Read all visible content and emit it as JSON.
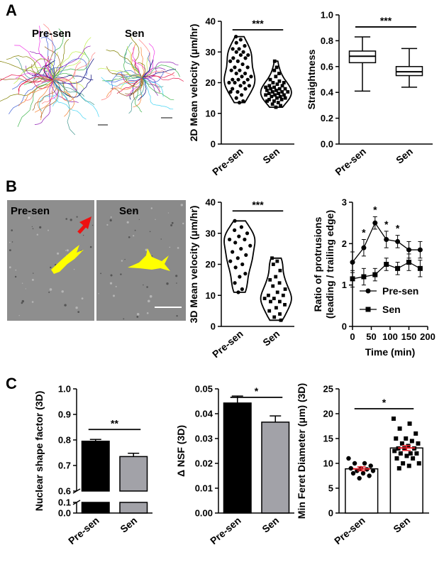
{
  "panel_labels": [
    "A",
    "B",
    "C"
  ],
  "images": {
    "a_left": "Pre-sen",
    "a_right": "Sen",
    "b_left": "Pre-sen",
    "b_right": "Sen"
  },
  "chart_data": [
    {
      "type": "violin",
      "ylabel": "2D Mean velocity (μm/hr)",
      "categories": [
        "Pre-sen",
        "Sen"
      ],
      "markers": [
        "circle",
        "square"
      ],
      "values": [
        [
          35,
          34,
          33,
          32,
          31,
          31,
          30,
          30,
          29,
          29,
          28,
          28,
          27,
          27,
          26,
          25,
          25,
          24,
          24,
          23,
          23,
          22,
          22,
          21,
          21,
          21,
          20,
          20,
          20,
          19,
          19,
          18,
          18,
          17,
          17,
          16,
          15,
          14,
          13.5
        ],
        [
          27,
          25,
          24,
          23,
          22,
          21,
          20.5,
          20,
          20,
          19.5,
          19,
          19,
          18.5,
          18.5,
          18,
          18,
          18,
          17.5,
          17.5,
          17,
          17,
          17,
          16.5,
          16.5,
          16,
          16,
          16,
          15.5,
          15.5,
          15,
          15,
          14.5,
          14.5,
          14,
          14,
          13.5,
          13,
          12.5,
          12
        ]
      ],
      "ylim": [
        0,
        40
      ],
      "yticks": [
        0,
        10,
        20,
        30,
        40
      ],
      "significance": "***"
    },
    {
      "type": "box",
      "ylabel": "Straightness",
      "categories": [
        "Pre-sen",
        "Sen"
      ],
      "boxes": [
        {
          "min": 0.41,
          "q1": 0.63,
          "median": 0.68,
          "q3": 0.72,
          "max": 0.83
        },
        {
          "min": 0.44,
          "q1": 0.53,
          "median": 0.56,
          "q3": 0.6,
          "max": 0.74
        }
      ],
      "ylim": [
        0,
        1
      ],
      "yticks": [
        {
          "value": 0,
          "label": "0.0"
        },
        0.2,
        0.4,
        0.6,
        0.8,
        {
          "value": 1,
          "label": "1.0"
        }
      ],
      "significance": "***"
    },
    {
      "type": "violin",
      "ylabel": "3D Mean velocity (μm/hr)",
      "categories": [
        "Pre-sen",
        "Sen"
      ],
      "markers": [
        "circle",
        "square"
      ],
      "values": [
        [
          34,
          32,
          31,
          30,
          29,
          28,
          28,
          27,
          26,
          25,
          24,
          23,
          22,
          21,
          20,
          19,
          17,
          16,
          14,
          12,
          11
        ],
        [
          22,
          21,
          20,
          18,
          16,
          15,
          14,
          13,
          12,
          11,
          10,
          10,
          9,
          9,
          8,
          8,
          7,
          6,
          5,
          4,
          3,
          2
        ]
      ],
      "ylim": [
        0,
        40
      ],
      "yticks": [
        0,
        10,
        20,
        30,
        40
      ],
      "significance": "***"
    },
    {
      "type": "line",
      "ylabel": [
        "Ratio of protrusions",
        "(leading / trailing edge)"
      ],
      "xlabel": "Time (min)",
      "x": [
        0,
        30,
        60,
        90,
        120,
        150,
        180
      ],
      "series": [
        {
          "name": "Pre-sen",
          "marker": "circle",
          "color": "#000000",
          "values": [
            1.55,
            1.9,
            2.5,
            2.1,
            2.05,
            1.85,
            1.85
          ],
          "errors": [
            0.25,
            0.2,
            0.15,
            0.2,
            0.15,
            0.2,
            0.2
          ]
        },
        {
          "name": "Sen",
          "marker": "square",
          "color": "#000000",
          "values": [
            1.15,
            1.2,
            1.25,
            1.5,
            1.4,
            1.55,
            1.4
          ],
          "errors": [
            0.2,
            0.2,
            0.15,
            0.15,
            0.15,
            0.2,
            0.2
          ]
        }
      ],
      "xlim": [
        0,
        200
      ],
      "xticks": [
        0,
        50,
        100,
        150,
        200
      ],
      "ylim": [
        0,
        3
      ],
      "yticks": [
        0,
        1,
        2,
        3
      ],
      "annotations": [
        {
          "x": 30,
          "text": "*"
        },
        {
          "x": 60,
          "text": "*"
        },
        {
          "x": 90,
          "text": "*"
        },
        {
          "x": 120,
          "text": "*"
        }
      ],
      "legend": "lower-right"
    },
    {
      "type": "bar",
      "ylabel": "Nuclear shape factor (3D)",
      "categories": [
        "Pre-sen",
        "Sen"
      ],
      "values": [
        0.795,
        0.735
      ],
      "errors": [
        0.007,
        0.013
      ],
      "colors": [
        "#000000",
        "#a2a2a8"
      ],
      "ylim": [
        0,
        1
      ],
      "ybreak": [
        0.1,
        0.6
      ],
      "yticks": [
        {
          "value": 0,
          "label": "0.0"
        },
        0.1,
        0.6,
        0.7,
        0.8,
        0.9,
        {
          "value": 1,
          "label": "1.0"
        }
      ],
      "significance": "**"
    },
    {
      "type": "bar",
      "ylabel": "Δ NSF (3D)",
      "categories": [
        "Pre-sen",
        "Sen"
      ],
      "values": [
        0.0443,
        0.0366
      ],
      "errors": [
        0.0028,
        0.0025
      ],
      "colors": [
        "#000000",
        "#a2a2a8"
      ],
      "ylim": [
        0,
        0.05
      ],
      "yticks": [
        {
          "value": 0,
          "label": "0.00"
        },
        0.01,
        0.02,
        0.03,
        0.04,
        0.05
      ],
      "significance": "*"
    },
    {
      "type": "bar",
      "ylabel": "Min Feret Diameter (μm) (3D)",
      "categories": [
        "Pre-sen",
        "Sen"
      ],
      "values": [
        8.9,
        13.1
      ],
      "errors": [
        0.4,
        0.5
      ],
      "colors": [
        "#ffffff",
        "#ffffff"
      ],
      "error_color": "#e8202a",
      "markers": [
        "circle",
        "square"
      ],
      "points": [
        [
          11,
          10,
          10,
          9.5,
          9,
          9,
          8.8,
          8.5,
          8.5,
          8,
          8,
          7.5,
          7
        ],
        [
          19,
          18,
          17,
          16,
          15,
          15,
          14.5,
          14,
          14,
          13.5,
          13,
          13,
          13,
          12.5,
          12,
          12,
          12,
          11.5,
          11,
          11,
          10,
          10,
          9.5,
          9
        ]
      ],
      "ylim": [
        0,
        25
      ],
      "yticks": [
        0,
        5,
        10,
        15,
        20,
        25
      ],
      "significance": "*"
    }
  ]
}
